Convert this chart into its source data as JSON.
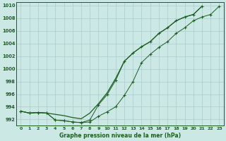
{
  "title": "Graphe pression niveau de la mer (hPa)",
  "background_color": "#cce8e4",
  "grid_color": "#aacccc",
  "line_color": "#1a5e20",
  "ylim": [
    991.0,
    1010.5
  ],
  "yticks": [
    992,
    994,
    996,
    998,
    1000,
    1002,
    1004,
    1006,
    1008,
    1010
  ],
  "xlim": [
    -0.5,
    23.5
  ],
  "s1": [
    993.3,
    993.0,
    993.1,
    993.0,
    992.8,
    992.6,
    992.3,
    992.1,
    993.0,
    994.5,
    996.2,
    998.5,
    1001.2,
    1002.5,
    1003.5,
    1004.3,
    1005.6,
    1006.5,
    1007.6,
    1008.2,
    1008.6,
    1009.9,
    null,
    null
  ],
  "s2": [
    993.3,
    993.0,
    993.1,
    993.0,
    991.9,
    991.8,
    991.6,
    991.5,
    991.6,
    992.5,
    993.2,
    994.0,
    995.8,
    998.0,
    1001.0,
    1002.3,
    1003.4,
    1004.3,
    1005.6,
    1006.5,
    1007.6,
    1008.2,
    1008.6,
    1009.9
  ],
  "s3": [
    993.3,
    993.0,
    993.1,
    993.0,
    991.9,
    991.8,
    991.6,
    991.5,
    991.9,
    994.3,
    995.9,
    998.2,
    1001.2,
    1002.5,
    1003.5,
    1004.3,
    1005.6,
    1006.5,
    1007.6,
    1008.2,
    1008.6,
    1009.9,
    null,
    null
  ]
}
